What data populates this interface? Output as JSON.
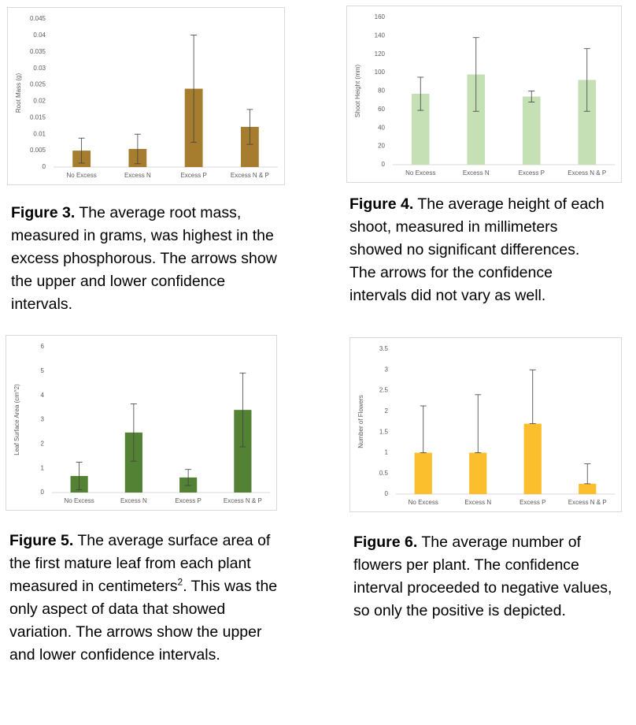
{
  "chart_data": [
    {
      "type": "bar",
      "y_label": "Root Mass (g)",
      "categories": [
        "No Excess",
        "Excess N",
        "Excess P",
        "Excess N & P"
      ],
      "values": [
        0.005,
        0.0055,
        0.0238,
        0.0122
      ],
      "errors": [
        0.0038,
        0.0045,
        0.0163,
        0.0053
      ],
      "error_direction": "both",
      "color": "#a67c2e",
      "ylim": [
        0,
        0.045
      ],
      "yticks": [
        0,
        0.005,
        0.01,
        0.015,
        0.02,
        0.025,
        0.03,
        0.035,
        0.04,
        0.045
      ]
    },
    {
      "type": "bar",
      "y_label": "Shoot Height (mm)",
      "categories": [
        "No Excess",
        "Excess N",
        "Excess P",
        "Excess N & P"
      ],
      "values": [
        77,
        98,
        74,
        92
      ],
      "errors": [
        18,
        40,
        6,
        34
      ],
      "error_direction": "both",
      "color": "#c5e0b4",
      "ylim": [
        0,
        160
      ],
      "yticks": [
        0,
        20,
        40,
        60,
        80,
        100,
        120,
        140,
        160
      ]
    },
    {
      "type": "bar",
      "y_label": "Leaf Surface Area (cm^2)",
      "categories": [
        "No Excess",
        "Excess N",
        "Excess P",
        "Excess N & P"
      ],
      "values": [
        0.68,
        2.47,
        0.62,
        3.4
      ],
      "errors": [
        0.57,
        1.18,
        0.33,
        1.52
      ],
      "error_direction": "both",
      "color": "#548235",
      "ylim": [
        0,
        6
      ],
      "yticks": [
        0,
        1,
        2,
        3,
        4,
        5,
        6
      ]
    },
    {
      "type": "bar",
      "y_label": "Number of Flowers",
      "categories": [
        "No Excess",
        "Excess N",
        "Excess P",
        "Excess N & P"
      ],
      "values": [
        1.0,
        1.0,
        1.7,
        0.25
      ],
      "errors": [
        1.13,
        1.4,
        1.3,
        0.48
      ],
      "error_direction": "plus",
      "color": "#fbbf2d",
      "ylim": [
        0,
        3.5
      ],
      "yticks": [
        0,
        0.5,
        1,
        1.5,
        2,
        2.5,
        3,
        3.5
      ]
    }
  ],
  "captions": [
    {
      "label": "Figure 3.",
      "text": "The average root mass, measured in grams, was highest in the excess phosphorous. The arrows show the upper and lower confidence intervals."
    },
    {
      "label": "Figure 4.",
      "text": "The average height of each shoot, measured in millimeters showed no significant differences. The arrows for the confidence intervals did not vary as well."
    },
    {
      "label": "Figure 5.",
      "text": "The average surface area of the first mature leaf from each plant measured in centimeters",
      "superscript": "2",
      "text_after": ". This was the only aspect of data that showed variation. The arrows show the upper and lower confidence intervals."
    },
    {
      "label": "Figure 6.",
      "text": "The average number of flowers per plant. The confidence interval proceeded to negative values, so only the positive is depicted."
    }
  ]
}
